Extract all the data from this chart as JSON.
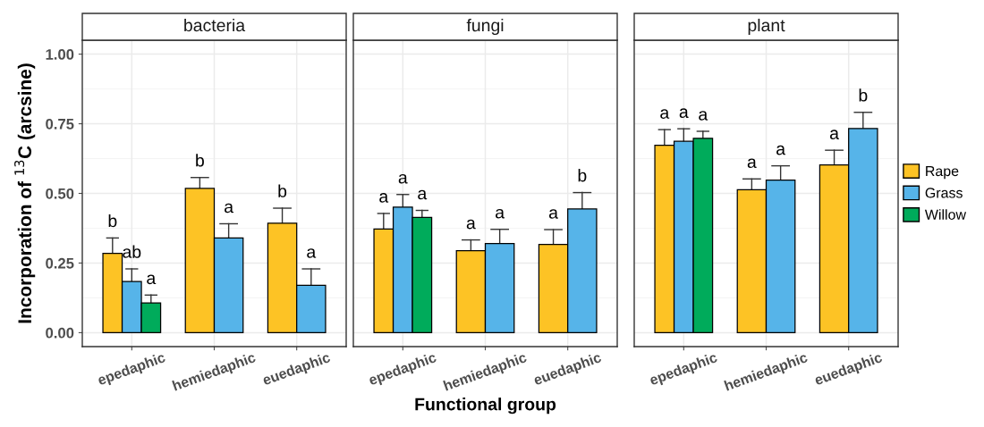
{
  "chart_data": [
    {
      "type": "bar",
      "title": "bacteria",
      "ylabel": "Incorporation of $^{13}$C (arcsine)",
      "categories": [
        "epedaphic",
        "hemiedaphic",
        "euedaphic"
      ],
      "ylim": [
        -0.05,
        1.05
      ],
      "yticks": [
        {
          "value": 0,
          "label": "0.00"
        },
        {
          "value": 0.25,
          "label": "0.25"
        },
        {
          "value": 0.5,
          "label": "0.50"
        },
        {
          "value": 0.75,
          "label": "0.75"
        },
        {
          "value": 1,
          "label": "1.00"
        }
      ],
      "grid": true,
      "legend": false,
      "series": [
        {
          "color": "#fdc325",
          "values": [
            0.285,
            0.518,
            0.393
          ],
          "errors": [
            [
              0.285,
              0.34
            ],
            [
              0.518,
              0.557
            ],
            [
              0.393,
              0.447
            ]
          ],
          "value_labels": [
            "b",
            "b",
            "b"
          ]
        },
        {
          "color": "#56b4e9",
          "values": [
            0.184,
            0.34,
            0.17
          ],
          "errors": [
            [
              0.184,
              0.229
            ],
            [
              0.34,
              0.391
            ],
            [
              0.17,
              0.229
            ]
          ],
          "value_labels": [
            "ab",
            "a",
            "a"
          ]
        },
        {
          "color": "#00ab5b",
          "values": [
            0.107,
            null,
            null
          ],
          "errors": [
            [
              0.107,
              0.135
            ],
            null,
            null
          ],
          "value_labels": [
            "a",
            null,
            null
          ]
        }
      ]
    },
    {
      "type": "bar",
      "title": "fungi",
      "xlabel": "Functional group",
      "categories": [
        "epedaphic",
        "hemiedaphic",
        "euedaphic"
      ],
      "ylim": [
        -0.05,
        1.05
      ],
      "yticks": [
        {
          "value": 0,
          "label": null
        },
        {
          "value": 0.25,
          "label": null
        },
        {
          "value": 0.5,
          "label": null
        },
        {
          "value": 0.75,
          "label": null
        },
        {
          "value": 1,
          "label": null
        }
      ],
      "tick_labels": "x",
      "grid": true,
      "legend": false,
      "series": [
        {
          "color": "#fdc325",
          "values": [
            0.372,
            0.294,
            0.317
          ],
          "errors": [
            [
              0.372,
              0.428
            ],
            [
              0.294,
              0.333
            ],
            [
              0.317,
              0.37
            ]
          ],
          "value_labels": [
            "a",
            "a",
            "a"
          ]
        },
        {
          "color": "#56b4e9",
          "values": [
            0.451,
            0.32,
            0.444
          ],
          "errors": [
            [
              0.451,
              0.496
            ],
            [
              0.32,
              0.371
            ],
            [
              0.444,
              0.503
            ]
          ],
          "value_labels": [
            "a",
            "a",
            "b"
          ]
        },
        {
          "color": "#00ab5b",
          "values": [
            0.414,
            null,
            null
          ],
          "errors": [
            [
              0.414,
              0.439
            ],
            null,
            null
          ],
          "value_labels": [
            "a",
            null,
            null
          ]
        }
      ]
    },
    {
      "type": "bar",
      "title": "plant",
      "categories": [
        "epedaphic",
        "hemiedaphic",
        "euedaphic"
      ],
      "ylim": [
        -0.05,
        1.05
      ],
      "yticks": [
        {
          "value": 0,
          "label": null
        },
        {
          "value": 0.25,
          "label": null
        },
        {
          "value": 0.5,
          "label": null
        },
        {
          "value": 0.75,
          "label": null
        },
        {
          "value": 1,
          "label": null
        }
      ],
      "tick_labels": "x",
      "grid": true,
      "legend": "right",
      "series": [
        {
          "name": "Rape",
          "color": "#fdc325",
          "values": [
            0.673,
            0.513,
            0.602
          ],
          "errors": [
            [
              0.673,
              0.729
            ],
            [
              0.513,
              0.552
            ],
            [
              0.602,
              0.655
            ]
          ],
          "value_labels": [
            "a",
            "a",
            "a"
          ]
        },
        {
          "name": "Grass",
          "color": "#56b4e9",
          "values": [
            0.687,
            0.548,
            0.733
          ],
          "errors": [
            [
              0.687,
              0.732
            ],
            [
              0.548,
              0.599
            ],
            [
              0.733,
              0.791
            ]
          ],
          "value_labels": [
            "a",
            "a",
            "b"
          ]
        },
        {
          "name": "Willow",
          "color": "#00ab5b",
          "values": [
            0.698,
            null,
            null
          ],
          "errors": [
            [
              0.698,
              0.723
            ],
            null,
            null
          ],
          "value_labels": [
            "a",
            null,
            null
          ]
        }
      ]
    }
  ]
}
